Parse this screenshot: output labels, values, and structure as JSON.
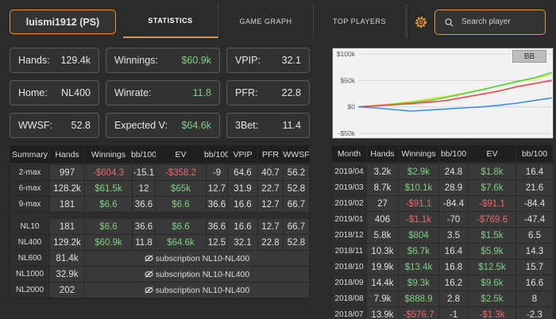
{
  "header": {
    "user": "luismi1912 (PS)",
    "tabs": [
      "STATISTICS",
      "GAME GRAPH",
      "TOP PLAYERS"
    ],
    "active_tab": 0,
    "search_placeholder": "Search player"
  },
  "stats": [
    {
      "label": "Hands:",
      "value": "129.4k"
    },
    {
      "label": "Winnings:",
      "value": "$60.9k",
      "color": "#7fcf7f"
    },
    {
      "label": "VPIP:",
      "value": "32.1"
    },
    {
      "label": "Home:",
      "value": "NL400"
    },
    {
      "label": "Winrate:",
      "value": "11.8",
      "color": "#7fcf7f"
    },
    {
      "label": "PFR:",
      "value": "22.8"
    },
    {
      "label": "WWSF:",
      "value": "52.8"
    },
    {
      "label": "Expected V:",
      "value": "$64.6k",
      "color": "#7fcf7f"
    },
    {
      "label": "3Bet:",
      "value": "11.4"
    }
  ],
  "graph": {
    "unit_button": "BB",
    "ylim": [
      -50000,
      100000
    ],
    "yticks": [
      {
        "value": 100000,
        "label": "$100k"
      },
      {
        "value": 50000,
        "label": "$50k"
      },
      {
        "value": 0,
        "label": "$0"
      },
      {
        "value": -50000,
        "label": "-$50k"
      }
    ],
    "series": [
      {
        "color": "#e6e63a",
        "values": [
          0,
          3000,
          6000,
          10000,
          15000,
          20000,
          26000,
          33000,
          40000,
          47000,
          54000,
          61000
        ]
      },
      {
        "color": "#4fd04f",
        "values": [
          0,
          2000,
          5000,
          8000,
          12000,
          18000,
          25000,
          32000,
          40000,
          48000,
          55000,
          65000
        ]
      },
      {
        "color": "#e84a4a",
        "values": [
          0,
          2000,
          4000,
          6000,
          9000,
          12000,
          18000,
          24000,
          30000,
          38000,
          44000,
          50000
        ]
      },
      {
        "color": "#3a8ee8",
        "values": [
          0,
          -2000,
          -5000,
          -8000,
          -6000,
          -4000,
          -2000,
          0,
          3000,
          7000,
          12000,
          17000
        ]
      }
    ]
  },
  "summary": {
    "columns": [
      "Summary",
      "Hands",
      "Winnings",
      "bb/100",
      "EV",
      "bb/100",
      "VPIP",
      "PFR",
      "WWSF"
    ],
    "groups": [
      [
        {
          "cells": [
            "2-max",
            "997",
            "-$604.3",
            "-15.1",
            "-$358.2",
            "-9",
            "64.6",
            "40.7",
            "56.2"
          ]
        },
        {
          "cells": [
            "6-max",
            "128.2k",
            "$61.5k",
            "12",
            "$65k",
            "12.7",
            "31.9",
            "22.7",
            "52.8"
          ]
        },
        {
          "cells": [
            "9-max",
            "181",
            "$6.6",
            "36.6",
            "$6.6",
            "36.6",
            "16.6",
            "12.7",
            "66.7"
          ]
        }
      ],
      [
        {
          "cells": [
            "NL10",
            "181",
            "$6.6",
            "36.6",
            "$6.6",
            "36.6",
            "16.6",
            "12.7",
            "66.7"
          ]
        },
        {
          "cells": [
            "NL400",
            "129.2k",
            "$60.9k",
            "11.8",
            "$64.6k",
            "12.5",
            "32.1",
            "22.8",
            "52.8"
          ]
        },
        {
          "cells": [
            "NL600",
            "81.4k"
          ],
          "locked": "subscription NL10-NL400"
        },
        {
          "cells": [
            "NL1000",
            "32.9k"
          ],
          "locked": "subscription NL10-NL400"
        },
        {
          "cells": [
            "NL2000",
            "202"
          ],
          "locked": "subscription NL10-NL400"
        }
      ]
    ]
  },
  "monthly": {
    "columns": [
      "Month",
      "Hands",
      "Winnings",
      "bb/100",
      "EV",
      "bb/100"
    ],
    "rows": [
      [
        "2019/04",
        "3.2k",
        "$2.9k",
        "24.8",
        "$1.8k",
        "16.4"
      ],
      [
        "2019/03",
        "8.7k",
        "$10.1k",
        "28.9",
        "$7.6k",
        "21.6"
      ],
      [
        "2019/02",
        "27",
        "-$91.1",
        "-84.4",
        "-$91.1",
        "-84.4"
      ],
      [
        "2019/01",
        "406",
        "-$1.1k",
        "-70",
        "-$769.6",
        "-47.4"
      ],
      [
        "2018/12",
        "5.8k",
        "$804",
        "3.5",
        "$1.5k",
        "6.5"
      ],
      [
        "2018/11",
        "10.3k",
        "$6.7k",
        "16.4",
        "$5.9k",
        "14.3"
      ],
      [
        "2018/10",
        "19.9k",
        "$13.4k",
        "16.8",
        "$12.5k",
        "15.7"
      ],
      [
        "2018/09",
        "14.4k",
        "$9.3k",
        "16.2",
        "$9.6k",
        "16.6"
      ],
      [
        "2018/08",
        "7.9k",
        "$888.9",
        "2.8",
        "$2.5k",
        "8"
      ],
      [
        "2018/07",
        "13.9k",
        "-$576.7",
        "-1",
        "-$1.3k",
        "-2.3"
      ]
    ]
  }
}
